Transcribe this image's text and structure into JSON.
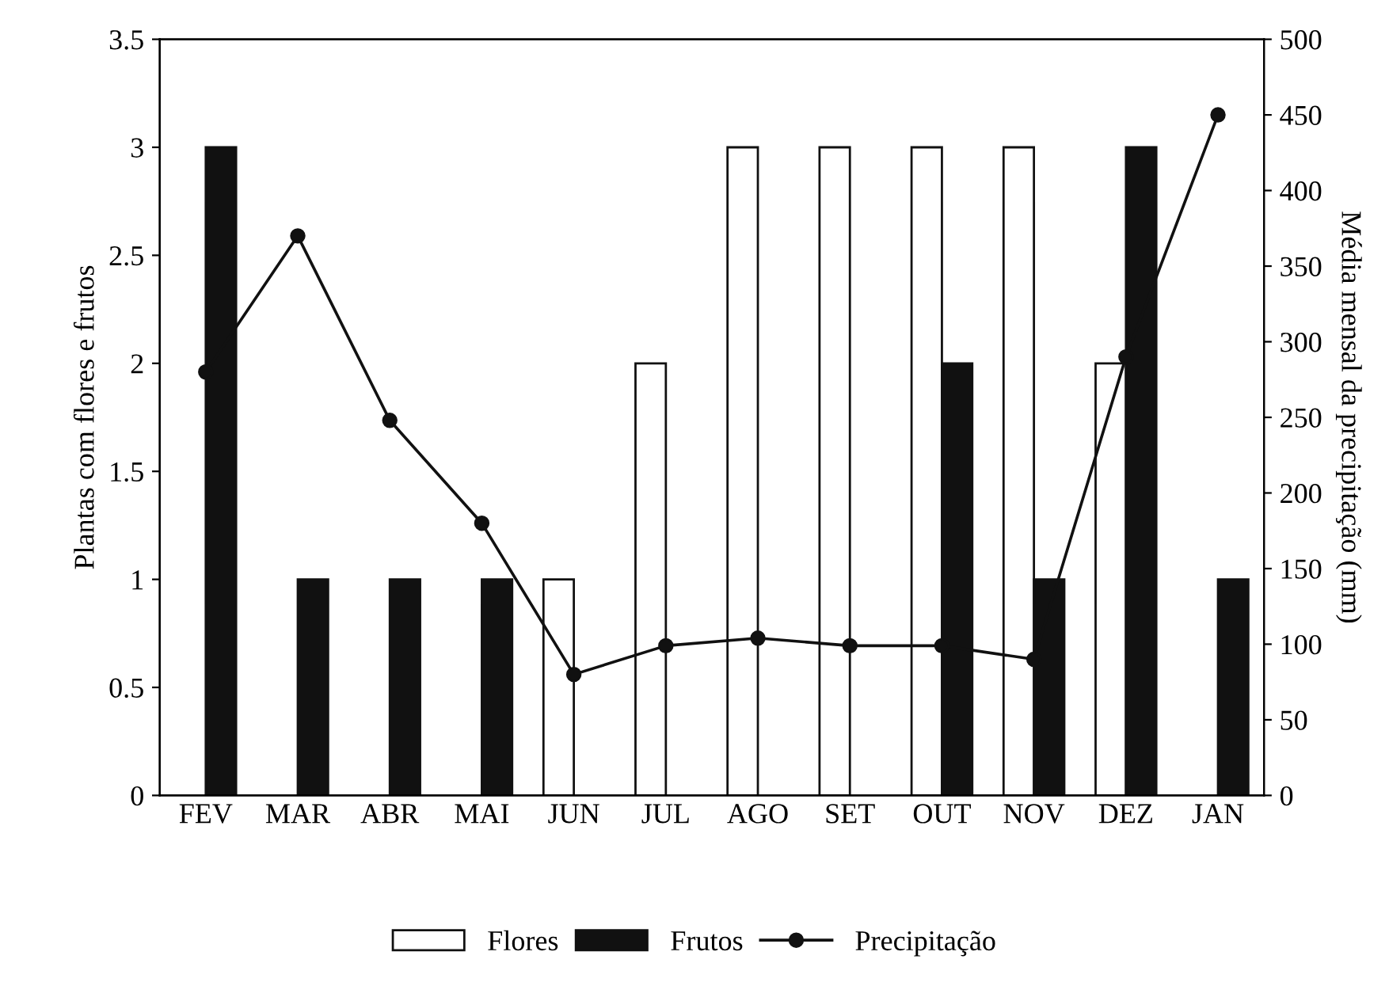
{
  "chart_data": {
    "type": "bar",
    "categories": [
      "FEV",
      "MAR",
      "ABR",
      "MAI",
      "JUN",
      "JUL",
      "AGO",
      "SET",
      "OUT",
      "NOV",
      "DEZ",
      "JAN"
    ],
    "ylabel": "Plantas com flores e frutos",
    "y2label": "Média mensal da precipitação (mm)",
    "series": [
      {
        "name": "Flores",
        "color": "#ffffff",
        "values": [
          0,
          0,
          0,
          0,
          1,
          2,
          3,
          3,
          3,
          3,
          2,
          0
        ]
      },
      {
        "name": "Frutos",
        "color": "#111111",
        "values": [
          3,
          1,
          1,
          1,
          0,
          0,
          0,
          0,
          2,
          1,
          3,
          1
        ]
      },
      {
        "name": "Precipitação",
        "type": "line",
        "axis": "y2",
        "color": "#111111",
        "marker": "circle",
        "line_style": "solid",
        "values": [
          280,
          370,
          248,
          180,
          80,
          99,
          104,
          99,
          99,
          90,
          290,
          450
        ]
      }
    ],
    "ylim": [
      0,
      3.5
    ],
    "yticks": [
      0,
      {
        "value": 0.5,
        "label": "0.5"
      },
      1,
      {
        "value": 1.5,
        "label": "1.5"
      },
      2,
      {
        "value": 2.5,
        "label": "2.5"
      },
      3,
      {
        "value": 3.5,
        "label": "3.5"
      }
    ],
    "y2lim": [
      0,
      500
    ],
    "y2ticks": [
      0,
      50,
      100,
      150,
      200,
      250,
      300,
      350,
      400,
      450,
      500
    ],
    "grid": false,
    "legend": "bottom"
  }
}
